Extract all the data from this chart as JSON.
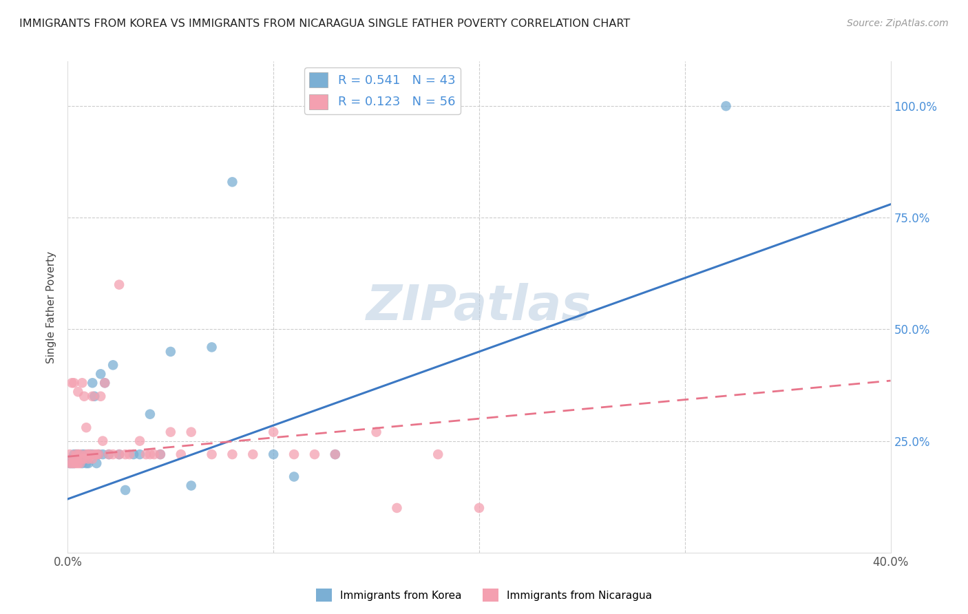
{
  "title": "IMMIGRANTS FROM KOREA VS IMMIGRANTS FROM NICARAGUA SINGLE FATHER POVERTY CORRELATION CHART",
  "source": "Source: ZipAtlas.com",
  "ylabel": "Single Father Poverty",
  "xlim": [
    0.0,
    0.4
  ],
  "ylim": [
    0.0,
    1.1
  ],
  "xticks": [
    0.0,
    0.1,
    0.2,
    0.3,
    0.4
  ],
  "xtick_labels": [
    "0.0%",
    "",
    "",
    "",
    "40.0%"
  ],
  "yticks_right": [
    0.25,
    0.5,
    0.75,
    1.0
  ],
  "ytick_right_labels": [
    "25.0%",
    "50.0%",
    "75.0%",
    "100.0%"
  ],
  "korea_R": 0.541,
  "korea_N": 43,
  "nicaragua_R": 0.123,
  "nicaragua_N": 56,
  "korea_color": "#7BAFD4",
  "nicaragua_color": "#F4A0B0",
  "korea_line_color": "#3B78C3",
  "nicaragua_line_color": "#E8748A",
  "watermark_text": "ZIPatlas",
  "korea_line_x0": 0.0,
  "korea_line_y0": 0.12,
  "korea_line_x1": 0.4,
  "korea_line_y1": 0.78,
  "nica_line_x0": 0.0,
  "nica_line_y0": 0.215,
  "nica_line_x1": 0.4,
  "nica_line_y1": 0.385,
  "korea_x": [
    0.001,
    0.002,
    0.002,
    0.003,
    0.003,
    0.003,
    0.004,
    0.004,
    0.005,
    0.005,
    0.006,
    0.007,
    0.007,
    0.008,
    0.008,
    0.009,
    0.01,
    0.01,
    0.011,
    0.012,
    0.012,
    0.013,
    0.014,
    0.015,
    0.016,
    0.017,
    0.018,
    0.02,
    0.022,
    0.025,
    0.028,
    0.032,
    0.035,
    0.04,
    0.045,
    0.05,
    0.06,
    0.07,
    0.08,
    0.1,
    0.11,
    0.13,
    0.32
  ],
  "korea_y": [
    0.2,
    0.2,
    0.21,
    0.2,
    0.21,
    0.22,
    0.21,
    0.22,
    0.21,
    0.22,
    0.21,
    0.22,
    0.2,
    0.22,
    0.21,
    0.2,
    0.22,
    0.2,
    0.22,
    0.38,
    0.22,
    0.35,
    0.2,
    0.22,
    0.4,
    0.22,
    0.38,
    0.22,
    0.42,
    0.22,
    0.14,
    0.22,
    0.22,
    0.31,
    0.22,
    0.45,
    0.15,
    0.46,
    0.83,
    0.22,
    0.17,
    0.22,
    1.0
  ],
  "nicaragua_x": [
    0.001,
    0.001,
    0.002,
    0.002,
    0.003,
    0.003,
    0.003,
    0.004,
    0.004,
    0.005,
    0.005,
    0.005,
    0.006,
    0.006,
    0.007,
    0.007,
    0.008,
    0.008,
    0.009,
    0.009,
    0.01,
    0.01,
    0.011,
    0.012,
    0.012,
    0.013,
    0.014,
    0.015,
    0.016,
    0.017,
    0.018,
    0.02,
    0.022,
    0.025,
    0.025,
    0.028,
    0.03,
    0.035,
    0.038,
    0.04,
    0.042,
    0.045,
    0.05,
    0.055,
    0.06,
    0.07,
    0.08,
    0.09,
    0.1,
    0.11,
    0.12,
    0.13,
    0.15,
    0.16,
    0.18,
    0.2
  ],
  "nicaragua_y": [
    0.2,
    0.22,
    0.2,
    0.38,
    0.2,
    0.21,
    0.38,
    0.2,
    0.22,
    0.36,
    0.22,
    0.2,
    0.22,
    0.2,
    0.21,
    0.38,
    0.21,
    0.35,
    0.22,
    0.28,
    0.22,
    0.21,
    0.22,
    0.21,
    0.35,
    0.22,
    0.22,
    0.22,
    0.35,
    0.25,
    0.38,
    0.22,
    0.22,
    0.22,
    0.6,
    0.22,
    0.22,
    0.25,
    0.22,
    0.22,
    0.22,
    0.22,
    0.27,
    0.22,
    0.27,
    0.22,
    0.22,
    0.22,
    0.27,
    0.22,
    0.22,
    0.22,
    0.27,
    0.1,
    0.22,
    0.1
  ]
}
